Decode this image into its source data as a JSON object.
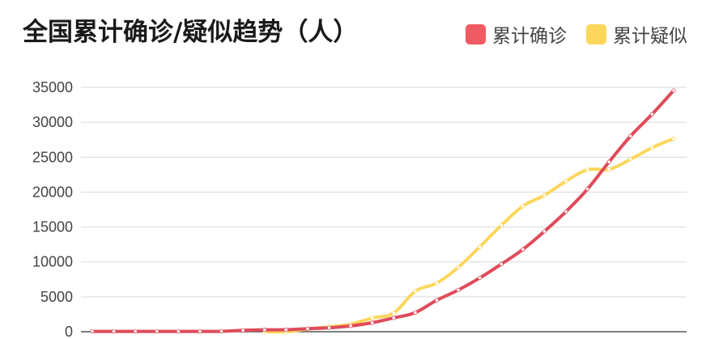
{
  "title": "全国累计确诊/疑似趋势（人）",
  "colors": {
    "confirmed": "#e04b5a",
    "suspected": "#fcd75c"
  },
  "legend": [
    {
      "label": "累计确诊",
      "color": "#ef5b62"
    },
    {
      "label": "累计疑似",
      "color": "#fdd75b"
    }
  ],
  "chart_data": {
    "type": "line",
    "title": "全国累计确诊/疑似趋势（人）",
    "xlabel": "",
    "ylabel": "",
    "ylim": [
      0,
      35000
    ],
    "yticks": [
      0,
      5000,
      10000,
      15000,
      20000,
      25000,
      30000,
      35000
    ],
    "ytick_labels": [
      "0",
      "5000",
      "10000",
      "15000",
      "20000",
      "25000",
      "30000",
      "35000"
    ],
    "grid": true,
    "legend_position": "top-right",
    "series": [
      {
        "name": "累计确诊",
        "color": "#e04b5a",
        "points": [
          [
            0,
            45
          ],
          [
            1,
            45
          ],
          [
            2,
            45
          ],
          [
            3,
            45
          ],
          [
            4,
            45
          ],
          [
            5,
            45
          ],
          [
            6,
            62
          ],
          [
            7,
            198
          ],
          [
            8,
            275
          ],
          [
            9,
            291
          ],
          [
            10,
            440
          ],
          [
            11,
            571
          ],
          [
            12,
            830
          ],
          [
            13,
            1287
          ],
          [
            14,
            1975
          ],
          [
            15,
            2744
          ],
          [
            16,
            4515
          ],
          [
            17,
            5974
          ],
          [
            18,
            7711
          ],
          [
            19,
            9692
          ],
          [
            20,
            11791
          ],
          [
            21,
            14380
          ],
          [
            22,
            17205
          ],
          [
            23,
            20438
          ],
          [
            24,
            24324
          ],
          [
            25,
            28018
          ],
          [
            26,
            31161
          ],
          [
            27,
            34546
          ]
        ]
      },
      {
        "name": "累计疑似",
        "color": "#fcd75c",
        "points": [
          [
            8,
            0
          ],
          [
            9,
            0
          ],
          [
            10,
            393
          ],
          [
            11,
            701
          ],
          [
            12,
            1072
          ],
          [
            13,
            1965
          ],
          [
            14,
            2684
          ],
          [
            15,
            5794
          ],
          [
            16,
            6973
          ],
          [
            17,
            9239
          ],
          [
            18,
            12167
          ],
          [
            19,
            15238
          ],
          [
            20,
            17988
          ],
          [
            21,
            19544
          ],
          [
            22,
            21558
          ],
          [
            23,
            23214
          ],
          [
            24,
            23260
          ],
          [
            25,
            24702
          ],
          [
            26,
            26359
          ],
          [
            27,
            27657
          ]
        ]
      }
    ]
  }
}
